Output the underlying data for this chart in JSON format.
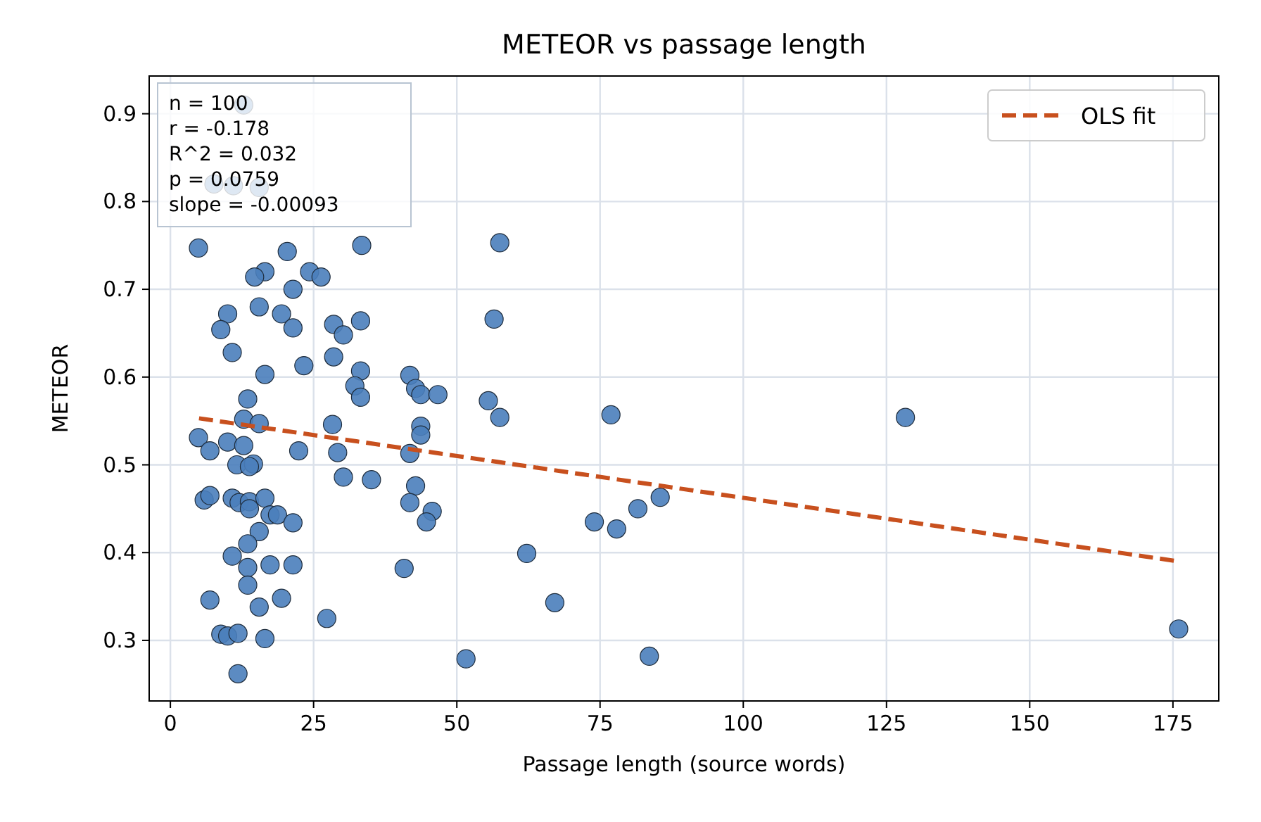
{
  "chart_data": {
    "type": "scatter",
    "title": "METEOR vs passage length",
    "xlabel": "Passage length (source words)",
    "ylabel": "METEOR",
    "xlim": [
      -3.7,
      183
    ],
    "ylim": [
      0.231,
      0.943
    ],
    "xticks": [
      0,
      25,
      50,
      75,
      100,
      125,
      150,
      175
    ],
    "yticks": [
      0.3,
      0.4,
      0.5,
      0.6,
      0.7,
      0.8,
      0.9
    ],
    "grid": true,
    "legend": "top right",
    "marker": "circle",
    "annotations": [
      "n = 100",
      "r = -0.178",
      "R^2 = 0.032",
      "p = 0.0759",
      "slope = -0.00093"
    ],
    "series": [
      {
        "color": "#4a7ebb",
        "x": [
          4.9,
          7.6,
          11,
          15.5,
          12.8,
          20.4,
          33.4,
          16.5,
          14.7,
          24.3,
          26.3,
          21.4,
          10,
          15.5,
          19.4,
          21.4,
          8.8,
          28.5,
          30.2,
          33.2,
          10.8,
          23.3,
          16.5,
          28.5,
          33.2,
          32.2,
          33.2,
          13.5,
          12.8,
          15.5,
          4.9,
          6.9,
          10,
          12.8,
          22.4,
          28.3,
          29.2,
          30.2,
          35.1,
          11.6,
          14.5,
          13.8,
          5.9,
          6.9,
          10.8,
          12,
          13.8,
          16.5,
          13.8,
          17.4,
          18.7,
          21.4,
          15.5,
          13.5,
          10.8,
          13.5,
          17.4,
          21.4,
          13.5,
          6.9,
          15.5,
          19.4,
          27.3,
          8.8,
          10,
          11.8,
          16.5,
          11.8,
          57.5,
          56.5,
          41.8,
          42.8,
          43.7,
          46.7,
          55.5,
          57.5,
          76.9,
          43.7,
          43.7,
          41.8,
          42.8,
          41.8,
          45.7,
          44.7,
          74,
          77.9,
          81.6,
          85.5,
          40.8,
          62.2,
          67.1,
          51.6,
          83.6,
          128.3,
          176
        ],
        "values": [
          0.747,
          0.82,
          0.818,
          0.816,
          0.91,
          0.743,
          0.75,
          0.72,
          0.714,
          0.72,
          0.714,
          0.7,
          0.672,
          0.68,
          0.672,
          0.656,
          0.654,
          0.66,
          0.648,
          0.664,
          0.628,
          0.613,
          0.603,
          0.623,
          0.607,
          0.59,
          0.577,
          0.575,
          0.552,
          0.547,
          0.531,
          0.516,
          0.526,
          0.522,
          0.516,
          0.546,
          0.514,
          0.486,
          0.483,
          0.5,
          0.501,
          0.498,
          0.46,
          0.465,
          0.462,
          0.457,
          0.458,
          0.462,
          0.45,
          0.443,
          0.443,
          0.434,
          0.424,
          0.41,
          0.396,
          0.383,
          0.386,
          0.386,
          0.363,
          0.346,
          0.338,
          0.348,
          0.325,
          0.307,
          0.305,
          0.308,
          0.302,
          0.262,
          0.753,
          0.666,
          0.602,
          0.587,
          0.58,
          0.58,
          0.573,
          0.554,
          0.557,
          0.544,
          0.534,
          0.513,
          0.476,
          0.457,
          0.447,
          0.435,
          0.435,
          0.427,
          0.45,
          0.463,
          0.382,
          0.399,
          0.343,
          0.279,
          0.282,
          0.554,
          0.313
        ]
      },
      {
        "type": "line",
        "name": "OLS fit",
        "color": "#c8501e",
        "line_style": "dashed",
        "marker": "none",
        "x": [
          5,
          176
        ],
        "values": [
          0.553,
          0.39
        ]
      }
    ]
  }
}
